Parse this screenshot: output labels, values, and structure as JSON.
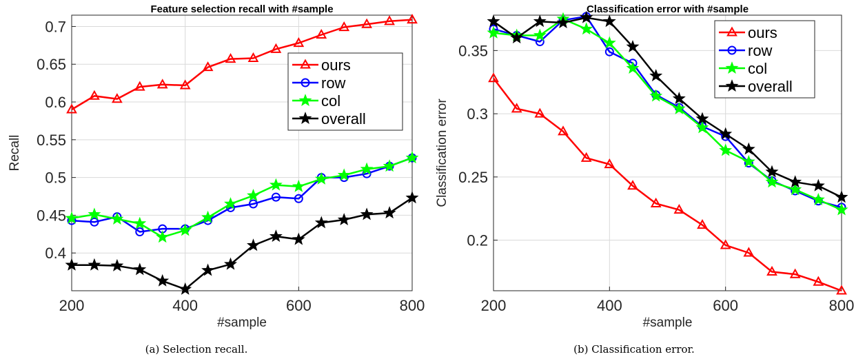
{
  "figure": {
    "caption_a": "(a) Selection recall.",
    "caption_b": "(b) Classification error."
  },
  "chart_data": [
    {
      "type": "line",
      "title": "Feature selection recall with #sample",
      "xlabel": "#sample",
      "ylabel": "Recall",
      "xlim": [
        200,
        800
      ],
      "ylim": [
        0.35,
        0.715
      ],
      "xticks": [
        200,
        400,
        600,
        800
      ],
      "yticks": [
        0.4,
        0.45,
        0.5,
        0.55,
        0.6,
        0.65,
        0.7
      ],
      "ytick_labels": [
        "0.4",
        "0.45",
        "0.5",
        "0.55",
        "0.6",
        "0.65",
        "0.7"
      ],
      "grid": true,
      "legend_position": "right",
      "x": [
        200,
        240,
        280,
        320,
        360,
        400,
        440,
        480,
        520,
        560,
        600,
        640,
        680,
        720,
        760,
        800
      ],
      "series": [
        {
          "name": "ours",
          "color": "#ff0000",
          "marker": "triangle",
          "values": [
            0.59,
            0.608,
            0.604,
            0.62,
            0.623,
            0.622,
            0.646,
            0.657,
            0.658,
            0.67,
            0.678,
            0.689,
            0.699,
            0.703,
            0.707,
            0.709
          ]
        },
        {
          "name": "row",
          "color": "#0000ff",
          "marker": "circle",
          "values": [
            0.443,
            0.441,
            0.448,
            0.428,
            0.432,
            0.432,
            0.443,
            0.46,
            0.465,
            0.474,
            0.472,
            0.5,
            0.5,
            0.505,
            0.515,
            0.526
          ]
        },
        {
          "name": "col",
          "color": "#00ff00",
          "marker": "star",
          "values": [
            0.446,
            0.451,
            0.445,
            0.439,
            0.421,
            0.43,
            0.447,
            0.465,
            0.476,
            0.49,
            0.488,
            0.498,
            0.503,
            0.511,
            0.515,
            0.526
          ]
        },
        {
          "name": "overall",
          "color": "#000000",
          "marker": "star",
          "values": [
            0.384,
            0.384,
            0.383,
            0.378,
            0.363,
            0.352,
            0.377,
            0.385,
            0.41,
            0.422,
            0.418,
            0.44,
            0.444,
            0.451,
            0.453,
            0.473
          ]
        }
      ]
    },
    {
      "type": "line",
      "title": "Classification error with #sample",
      "xlabel": "#sample",
      "ylabel": "Classification error",
      "xlim": [
        200,
        800
      ],
      "ylim": [
        0.16,
        0.378
      ],
      "xticks": [
        200,
        400,
        600,
        800
      ],
      "yticks": [
        0.2,
        0.25,
        0.3,
        0.35
      ],
      "ytick_labels": [
        "0.2",
        "0.25",
        "0.3",
        "0.35"
      ],
      "grid": true,
      "legend_position": "top-right",
      "x": [
        200,
        240,
        280,
        320,
        360,
        400,
        440,
        480,
        520,
        560,
        600,
        640,
        680,
        720,
        760,
        800
      ],
      "series": [
        {
          "name": "ours",
          "color": "#ff0000",
          "marker": "triangle",
          "values": [
            0.328,
            0.304,
            0.3,
            0.286,
            0.265,
            0.26,
            0.243,
            0.229,
            0.224,
            0.212,
            0.196,
            0.19,
            0.175,
            0.173,
            0.167,
            0.16
          ]
        },
        {
          "name": "row",
          "color": "#0000ff",
          "marker": "circle",
          "values": [
            0.367,
            0.362,
            0.357,
            0.374,
            0.377,
            0.349,
            0.34,
            0.315,
            0.305,
            0.29,
            0.282,
            0.261,
            0.247,
            0.239,
            0.231,
            0.226
          ]
        },
        {
          "name": "col",
          "color": "#00ff00",
          "marker": "star",
          "values": [
            0.364,
            0.362,
            0.362,
            0.375,
            0.367,
            0.356,
            0.336,
            0.314,
            0.304,
            0.289,
            0.271,
            0.262,
            0.246,
            0.24,
            0.232,
            0.224
          ]
        },
        {
          "name": "overall",
          "color": "#000000",
          "marker": "star",
          "values": [
            0.373,
            0.36,
            0.373,
            0.372,
            0.376,
            0.373,
            0.353,
            0.33,
            0.312,
            0.296,
            0.284,
            0.272,
            0.254,
            0.246,
            0.243,
            0.234
          ]
        }
      ]
    }
  ]
}
